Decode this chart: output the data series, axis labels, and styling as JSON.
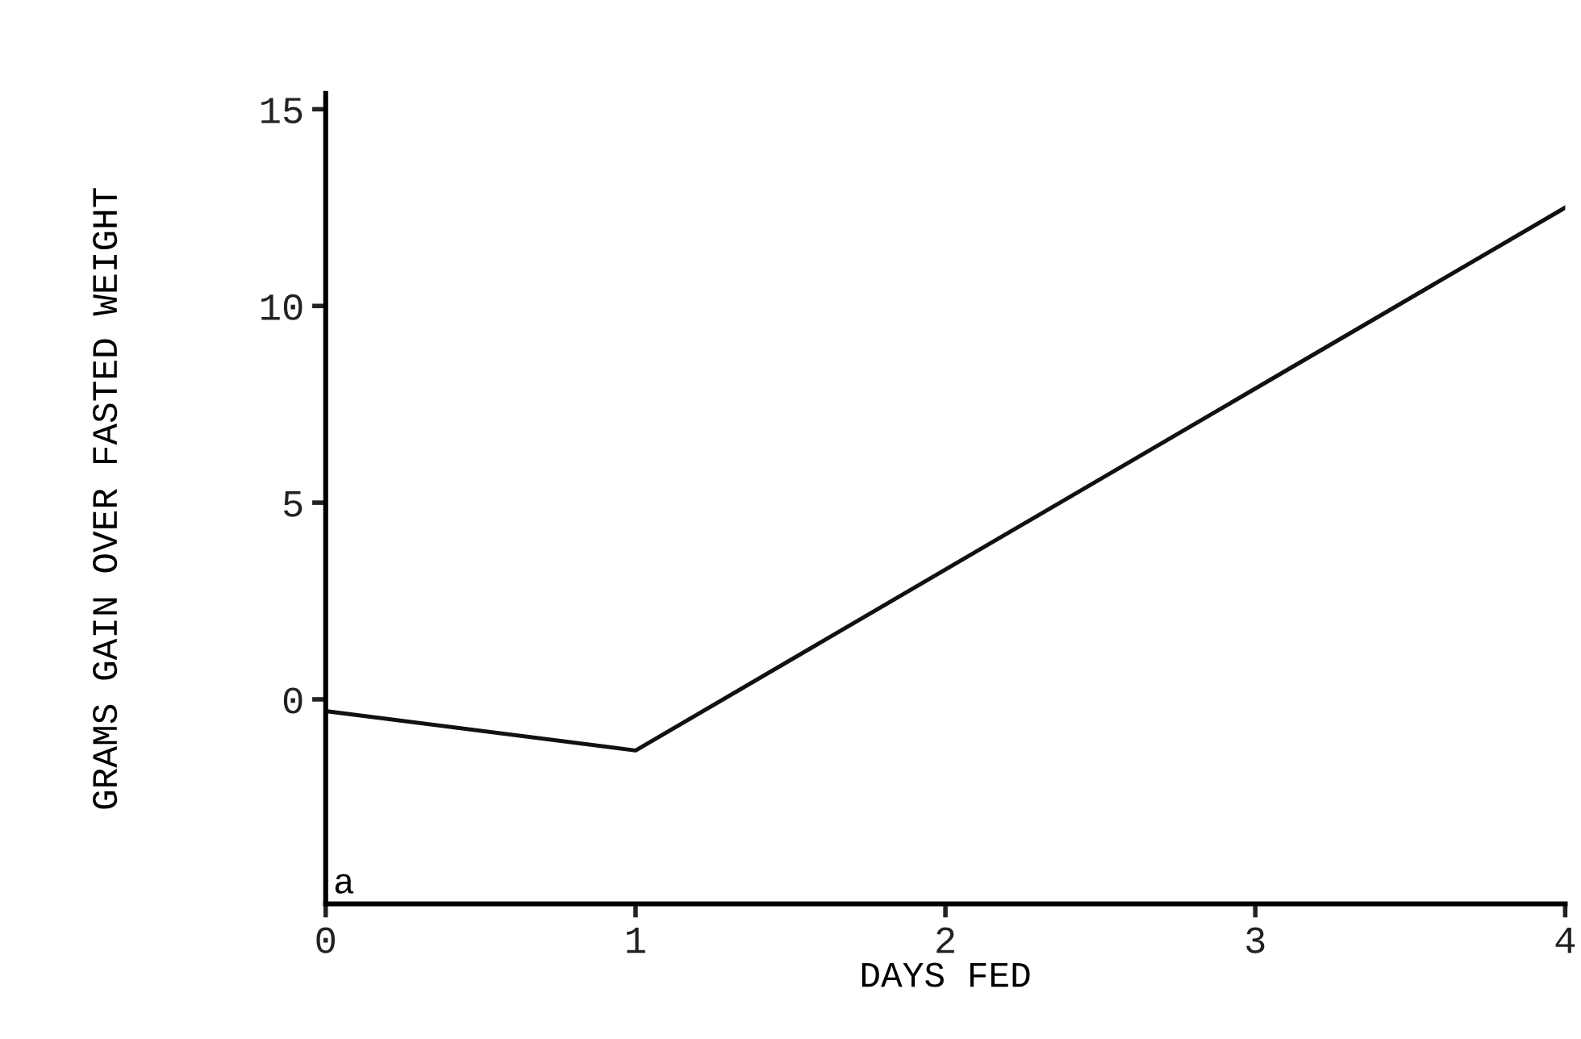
{
  "chart_data": {
    "type": "line",
    "xlabel": "DAYS FED",
    "ylabel": "GRAMS GAIN OVER FASTED WEIGHT",
    "x": [
      0,
      1,
      4
    ],
    "series": [
      {
        "color": "#111111",
        "values": [
          -0.3,
          -1.3,
          12.5
        ]
      }
    ],
    "xlim": [
      0,
      4
    ],
    "ylim": [
      -5.2,
      15.4
    ],
    "xticks": [
      0,
      1,
      2,
      3,
      4
    ],
    "yticks": [
      0,
      5,
      10,
      15
    ],
    "annotations": [
      "a"
    ],
    "grid": false,
    "legend": false,
    "marker": "none",
    "line_style": "solid"
  }
}
